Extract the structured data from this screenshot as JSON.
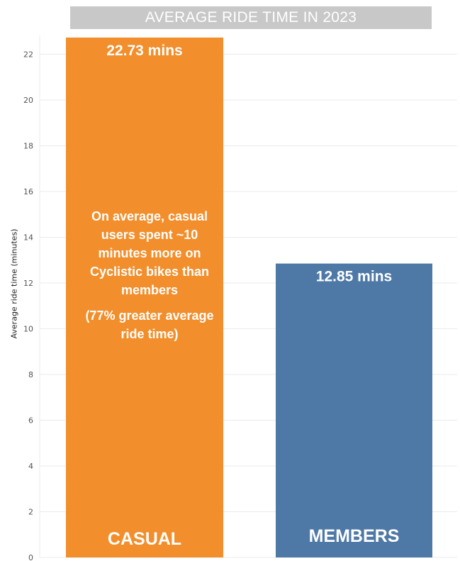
{
  "title": "AVERAGE RIDE TIME IN 2023",
  "annotation": {
    "line1": "On average, casual users spent ~10 minutes more on Cyclistic bikes than members",
    "line2": "(77% greater average ride time)"
  },
  "colors": {
    "casual": "#f28e2b",
    "members": "#4e79a7",
    "grid": "#ebebeb",
    "title_bg": "#c8c8c8"
  },
  "chart_data": {
    "type": "bar",
    "title": "AVERAGE RIDE TIME IN 2023",
    "xlabel": "",
    "ylabel": "Average ride time (minutes)",
    "categories": [
      "CASUAL",
      "MEMBERS"
    ],
    "values": [
      22.73,
      12.85
    ],
    "value_labels": [
      "22.73 mins",
      "12.85 mins"
    ],
    "ylim": [
      0,
      23.5
    ],
    "yticks": [
      0,
      2,
      4,
      6,
      8,
      10,
      12,
      14,
      16,
      18,
      20,
      22
    ],
    "grid": true,
    "legend": "none"
  }
}
